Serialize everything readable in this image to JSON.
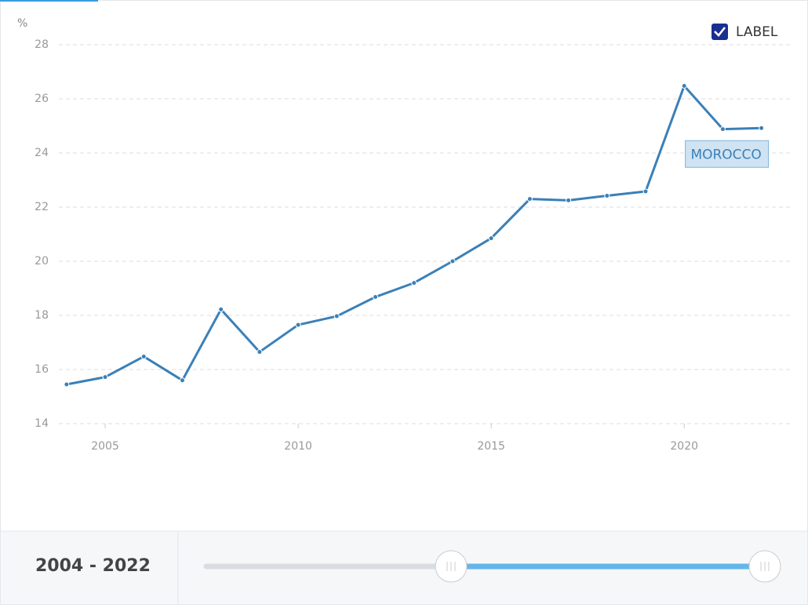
{
  "chart_data": {
    "type": "line",
    "y_label": "%",
    "x": [
      2004,
      2005,
      2006,
      2007,
      2008,
      2009,
      2010,
      2011,
      2012,
      2013,
      2014,
      2015,
      2016,
      2017,
      2018,
      2019,
      2020,
      2021,
      2022
    ],
    "series": [
      {
        "name": "MOROCCO",
        "color": "#3a80b8",
        "values": [
          15.45,
          15.72,
          16.48,
          15.6,
          18.22,
          16.65,
          17.65,
          17.97,
          18.68,
          19.2,
          20.0,
          20.85,
          22.3,
          22.25,
          22.42,
          22.58,
          26.48,
          24.88,
          24.92
        ]
      }
    ],
    "xlim": [
      2003.8,
      2022.8
    ],
    "xticks": [
      2005,
      2010,
      2015,
      2020
    ],
    "ylim": [
      14,
      28
    ],
    "yticks": [
      14,
      16,
      18,
      20,
      22,
      24,
      26,
      28
    ],
    "grid": true
  },
  "controls": {
    "label_toggle": "LABEL"
  },
  "slider": {
    "range": "2004 - 2022"
  }
}
